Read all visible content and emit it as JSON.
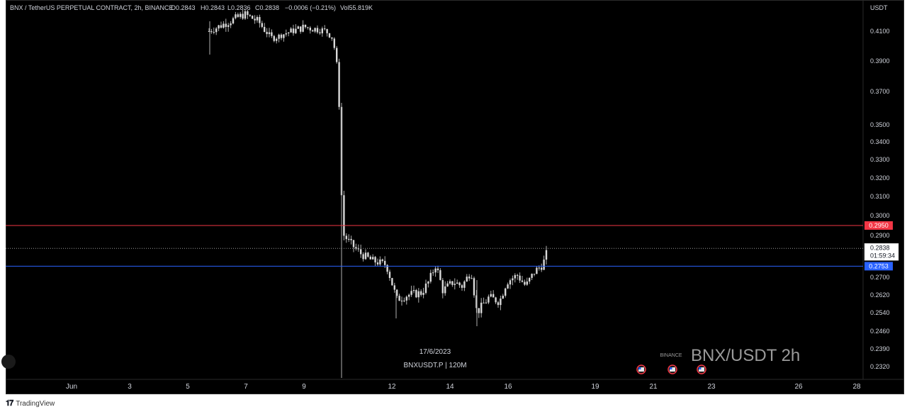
{
  "header": {
    "symbol": "BNX / TetherUS PERPETUAL CONTRACT, 2h, BINANCE",
    "open": "O0.2843",
    "high": "H0.2843",
    "low": "L0.2836",
    "close": "C0.2838",
    "change": "−0.0006 (−0.21%)",
    "volume": "Vol55.819K"
  },
  "price_axis": {
    "currency": "USDT",
    "ticks": [
      "0.4100",
      "0.3900",
      "0.3700",
      "0.3500",
      "0.3400",
      "0.3300",
      "0.3200",
      "0.3100",
      "0.3000",
      "0.2900",
      "0.2700",
      "0.2620",
      "0.2540",
      "0.2460",
      "0.2390",
      "0.2320"
    ]
  },
  "time_axis": {
    "ticks": [
      "Jun",
      "3",
      "5",
      "7",
      "9",
      "12",
      "14",
      "16",
      "19",
      "21",
      "23",
      "26",
      "28"
    ]
  },
  "levels": {
    "resistance": {
      "value": "0.2950",
      "color": "#f23645"
    },
    "support": {
      "value": "0.2753",
      "color": "#2962ff"
    },
    "last": {
      "value": "0.2838",
      "countdown": "01:59:34"
    }
  },
  "watermark": {
    "date": "17/6/2023",
    "symbol": "BNXUSDT.P | 120M",
    "exchange": "BINANCE",
    "pair": "BNX/USDT 2h"
  },
  "footer": {
    "brand": "TradingView",
    "logo": "tradingview-logo-icon"
  },
  "colors": {
    "candle": "#d9d9d9",
    "wick": "#b0b0b0",
    "background": "#000000",
    "axis_text": "#d1d4dc"
  },
  "chart_data": {
    "type": "candlestick",
    "interval": "2h",
    "x": [
      "Jun 6",
      "Jun 7",
      "Jun 8",
      "Jun 9",
      "Jun 10 (before drop)",
      "Jun 10 (after drop)",
      "Jun 11",
      "Jun 12",
      "Jun 13",
      "Jun 14",
      "Jun 15",
      "Jun 16",
      "Jun 17"
    ],
    "series": [
      {
        "values": [
          0.413,
          0.418,
          0.407,
          0.412,
          0.408,
          0.291,
          0.283,
          0.266,
          0.271,
          0.269,
          0.264,
          0.27,
          0.2838
        ]
      }
    ],
    "ylim": [
      0.23,
      0.42
    ],
    "y_scale": "log",
    "horizontal_lines": [
      0.295,
      0.2753
    ],
    "legend": "none"
  }
}
